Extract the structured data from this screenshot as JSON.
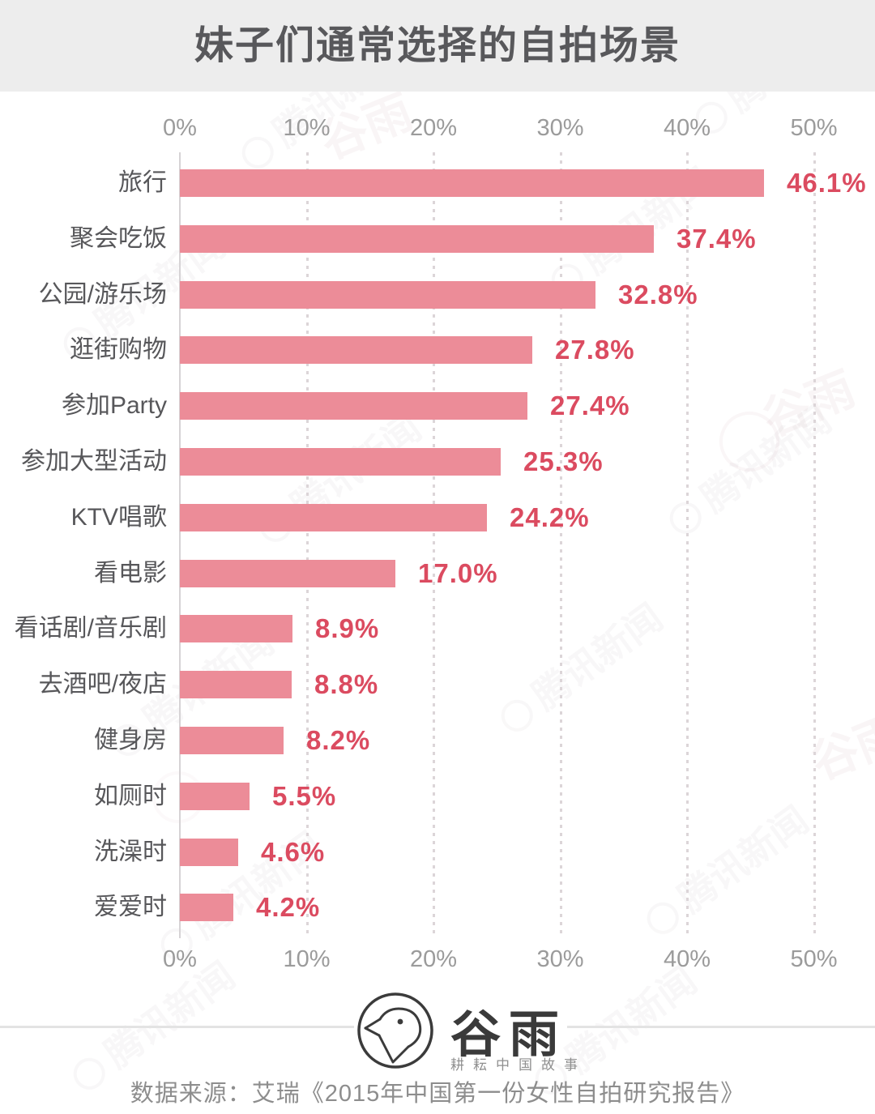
{
  "page": {
    "title": "妹子们通常选择的自拍场景",
    "source": "数据来源：艾瑞《2015年中国第一份女性自拍研究报告》",
    "logo": {
      "name": "谷雨",
      "slogan": "耕耘中国故事"
    },
    "watermark": {
      "brand": "腾讯新闻",
      "script": "谷雨"
    }
  },
  "chart_data": {
    "type": "bar",
    "orientation": "horizontal",
    "title": "妹子们通常选择的自拍场景",
    "categories": [
      "旅行",
      "聚会吃饭",
      "公园/游乐场",
      "逛街购物",
      "参加Party",
      "参加大型活动",
      "KTV唱歌",
      "看电影",
      "看话剧/音乐剧",
      "去酒吧/夜店",
      "健身房",
      "如厕时",
      "洗澡时",
      "爱爱时"
    ],
    "values": [
      46.1,
      37.4,
      32.8,
      27.8,
      27.4,
      25.3,
      24.2,
      17.0,
      8.9,
      8.8,
      8.2,
      5.5,
      4.6,
      4.2
    ],
    "value_labels": [
      "46.1%",
      "37.4%",
      "32.8%",
      "27.8%",
      "27.4%",
      "25.3%",
      "24.2%",
      "17.0%",
      "8.9%",
      "8.8%",
      "8.2%",
      "5.5%",
      "4.6%",
      "4.2%"
    ],
    "x_ticks": [
      "0%",
      "10%",
      "20%",
      "30%",
      "40%",
      "50%"
    ],
    "x_tick_values": [
      0,
      10,
      20,
      30,
      40,
      50
    ],
    "xlim": [
      0,
      50
    ],
    "xlabel": "",
    "ylabel": "",
    "grid": "vertical-dotted",
    "legend": "none",
    "bar_color": "#ec8c98",
    "value_label_color": "#db4b60",
    "category_label_color": "#57575a",
    "tick_label_color": "#9b9b9b"
  }
}
